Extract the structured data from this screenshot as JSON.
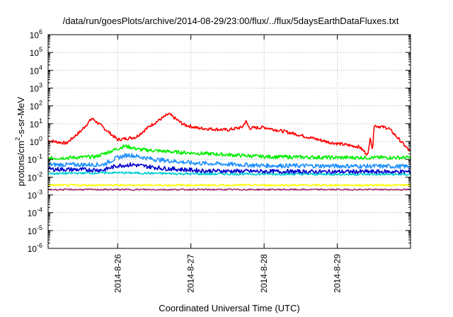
{
  "chart_data": {
    "type": "line",
    "title": "/data/run/goesPlots/archive/2014-08-29/23:00/flux/../flux/5daysEarthDataFluxes.txt",
    "xlabel": "Coordinated Universal Time (UTC)",
    "ylabel_parts": {
      "before": "protons/cm",
      "sup": "2",
      "after": "-s-sr-MeV"
    },
    "y_scale": "log",
    "y_exponent_range": [
      -6,
      6
    ],
    "y_tick_base": "10",
    "y_tick_exponents": [
      "6",
      "5",
      "4",
      "3",
      "2",
      "1",
      "0",
      "-1",
      "-2",
      "-3",
      "-4",
      "-5",
      "-6"
    ],
    "x_range_days": [
      25.05,
      30.0
    ],
    "x_ticks": [
      {
        "day": 26,
        "label": "2014-8-26"
      },
      {
        "day": 27,
        "label": "2014-8-27"
      },
      {
        "day": 28,
        "label": "2014-8-28"
      },
      {
        "day": 29,
        "label": "2014-8-29"
      }
    ],
    "grid": true,
    "x_unit_note": "x values are day-of-month, August 2014 (UTC)",
    "series": [
      {
        "color": "#ff0000",
        "noise": 0.09,
        "log_points": [
          [
            25.05,
            0.05
          ],
          [
            25.3,
            -0.1
          ],
          [
            25.5,
            0.6
          ],
          [
            25.65,
            1.3
          ],
          [
            25.8,
            0.8
          ],
          [
            26.0,
            0.1
          ],
          [
            26.25,
            0.25
          ],
          [
            26.45,
            0.9
          ],
          [
            26.7,
            1.55
          ],
          [
            26.9,
            0.95
          ],
          [
            27.1,
            0.75
          ],
          [
            27.5,
            0.65
          ],
          [
            27.7,
            0.8
          ],
          [
            27.75,
            1.15
          ],
          [
            27.8,
            0.75
          ],
          [
            28.0,
            0.8
          ],
          [
            28.4,
            0.45
          ],
          [
            28.9,
            -0.05
          ],
          [
            29.3,
            -0.3
          ],
          [
            29.42,
            -0.75
          ],
          [
            29.45,
            0.35
          ],
          [
            29.48,
            -0.6
          ],
          [
            29.5,
            0.9
          ],
          [
            29.7,
            0.75
          ],
          [
            29.85,
            0.1
          ],
          [
            30.0,
            -0.6
          ]
        ]
      },
      {
        "color": "#00ee00",
        "noise": 0.1,
        "log_points": [
          [
            25.05,
            -0.95
          ],
          [
            25.7,
            -0.85
          ],
          [
            25.9,
            -0.55
          ],
          [
            26.1,
            -0.25
          ],
          [
            26.3,
            -0.45
          ],
          [
            26.8,
            -0.6
          ],
          [
            27.3,
            -0.7
          ],
          [
            28.0,
            -0.85
          ],
          [
            29.0,
            -0.9
          ],
          [
            30.0,
            -0.9
          ]
        ]
      },
      {
        "color": "#1e90ff",
        "noise": 0.12,
        "log_points": [
          [
            25.05,
            -1.3
          ],
          [
            25.8,
            -1.3
          ],
          [
            26.0,
            -0.9
          ],
          [
            26.15,
            -0.75
          ],
          [
            26.5,
            -1.0
          ],
          [
            27.0,
            -1.2
          ],
          [
            28.0,
            -1.35
          ],
          [
            30.0,
            -1.4
          ]
        ]
      },
      {
        "color": "#0000cd",
        "noise": 0.12,
        "log_points": [
          [
            25.05,
            -1.55
          ],
          [
            25.8,
            -1.6
          ],
          [
            26.0,
            -1.35
          ],
          [
            26.2,
            -1.3
          ],
          [
            26.6,
            -1.5
          ],
          [
            27.2,
            -1.65
          ],
          [
            28.5,
            -1.7
          ],
          [
            30.0,
            -1.7
          ]
        ]
      },
      {
        "color": "#00ced1",
        "noise": 0.06,
        "log_points": [
          [
            25.05,
            -1.8
          ],
          [
            26.0,
            -1.75
          ],
          [
            27.0,
            -1.82
          ],
          [
            30.0,
            -1.85
          ]
        ]
      },
      {
        "color": "#ffff00",
        "noise": 0.05,
        "log_points": [
          [
            25.05,
            -2.45
          ],
          [
            30.0,
            -2.45
          ]
        ]
      },
      {
        "color": "#9b2f6f",
        "noise": 0.04,
        "log_points": [
          [
            25.05,
            -2.7
          ],
          [
            30.0,
            -2.7
          ]
        ]
      }
    ]
  }
}
